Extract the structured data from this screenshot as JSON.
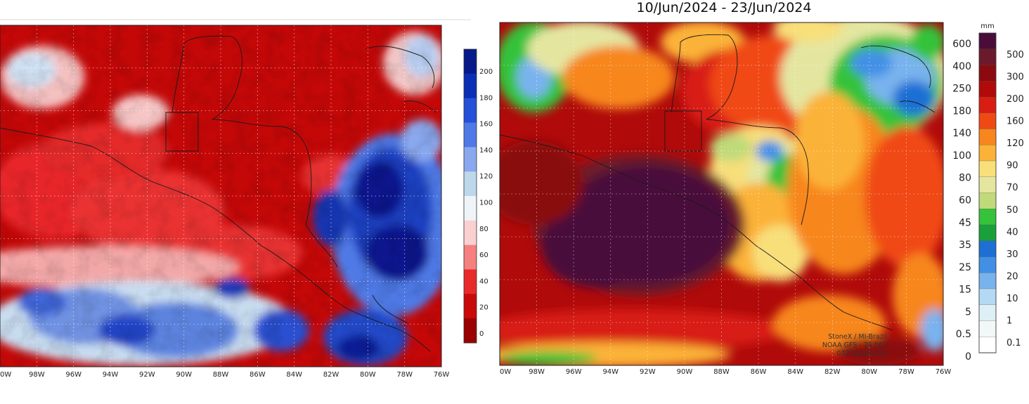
{
  "header": {
    "title": "10/Jun/2024 - 23/Jun/2024"
  },
  "map_left": {
    "x_ticks": [
      "0W",
      "98W",
      "96W",
      "94W",
      "92W",
      "90W",
      "88W",
      "86W",
      "84W",
      "82W",
      "80W",
      "78W",
      "76W"
    ],
    "colorbar": {
      "labels": [
        "200",
        "180",
        "160",
        "140",
        "120",
        "100",
        "80",
        "60",
        "40",
        "20",
        "0"
      ],
      "colors": [
        "#061a8a",
        "#0a2fb5",
        "#2550d8",
        "#4f7ae6",
        "#8aa8ee",
        "#bcd8ea",
        "#eef4f8",
        "#fbd0d0",
        "#f48080",
        "#e82a2a",
        "#c80a0a",
        "#9a0000"
      ]
    }
  },
  "map_right": {
    "x_ticks": [
      "0W",
      "98W",
      "96W",
      "94W",
      "92W",
      "90W",
      "88W",
      "86W",
      "84W",
      "82W",
      "80W",
      "78W",
      "76W"
    ],
    "colorbar_outer": {
      "labels": [
        "600",
        "400",
        "250",
        "180",
        "140",
        "100",
        "80",
        "60",
        "45",
        "35",
        "25",
        "15",
        "5",
        "0.5",
        "0"
      ]
    },
    "colorbar_inner": {
      "unit": "mm",
      "labels": [
        "500",
        "300",
        "200",
        "160",
        "120",
        "90",
        "70",
        "50",
        "40",
        "30",
        "20",
        "10",
        "1",
        "0.1"
      ],
      "colors": [
        "#4a0d3a",
        "#6b1a2c",
        "#8a0a10",
        "#b00a0a",
        "#d81e12",
        "#f04a14",
        "#f7861e",
        "#fbb238",
        "#f8df7a",
        "#e4e6a0",
        "#c0da7a",
        "#36c23a",
        "#1aa03a",
        "#1d6fd4",
        "#4290e6",
        "#79b3ee",
        "#b5d9f2",
        "#def0f6",
        "#f2f8f8",
        "#ffffff"
      ]
    },
    "credit": [
      "StoneX / MI-Brazil",
      "NOAA GFS - 25 062",
      "07Z10JUN2024"
    ]
  }
}
